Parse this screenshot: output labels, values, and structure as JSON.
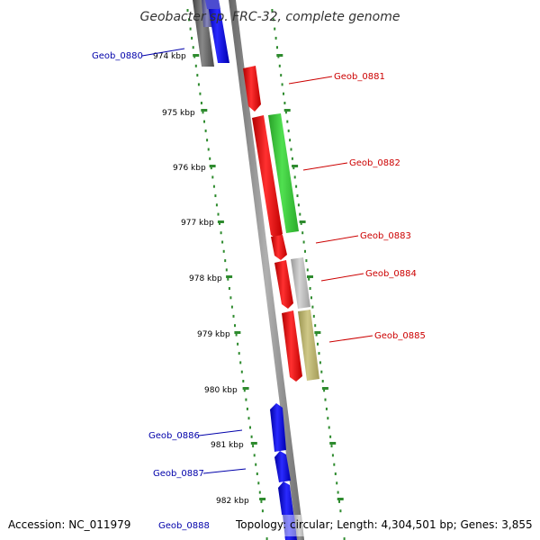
{
  "title": "Geobacter sp. FRC-32, complete genome",
  "footer": {
    "accession": "Accession: NC_011979",
    "summary": "Topology: circular; Length: 4,304,501 bp; Genes: 3,855"
  },
  "ticks": [
    {
      "label": "974 kbp"
    },
    {
      "label": "975 kbp"
    },
    {
      "label": "976 kbp"
    },
    {
      "label": "977 kbp"
    },
    {
      "label": "978 kbp"
    },
    {
      "label": "979 kbp"
    },
    {
      "label": "980 kbp"
    },
    {
      "label": "981 kbp"
    },
    {
      "label": "982 kbp"
    }
  ],
  "genes": [
    {
      "id": "Geob_0880",
      "label": "Geob_0880",
      "label_color": "#0000aa"
    },
    {
      "id": "Geob_0881",
      "label": "Geob_0881",
      "label_color": "#cc0000"
    },
    {
      "id": "Geob_0882",
      "label": "Geob_0882",
      "label_color": "#cc0000"
    },
    {
      "id": "Geob_0883",
      "label": "Geob_0883",
      "label_color": "#cc0000"
    },
    {
      "id": "Geob_0884",
      "label": "Geob_0884",
      "label_color": "#cc0000"
    },
    {
      "id": "Geob_0885",
      "label": "Geob_0885",
      "label_color": "#cc0000"
    },
    {
      "id": "Geob_0886",
      "label": "Geob_0886",
      "label_color": "#0000aa"
    },
    {
      "id": "Geob_0887",
      "label": "Geob_0887",
      "label_color": "#0000aa"
    },
    {
      "id": "Geob_0888",
      "label": "Geob_0888",
      "label_color": "#0000aa"
    }
  ],
  "colors": {
    "backbone": "#8a8a8a",
    "forward_strand": "#ff0000",
    "reverse_strand": "#0000ff",
    "tick_dots": "#2e8b2e",
    "green_feature": "#3ccc3c",
    "gray_feature": "#b8b8b8",
    "olive_feature": "#b8b070"
  }
}
